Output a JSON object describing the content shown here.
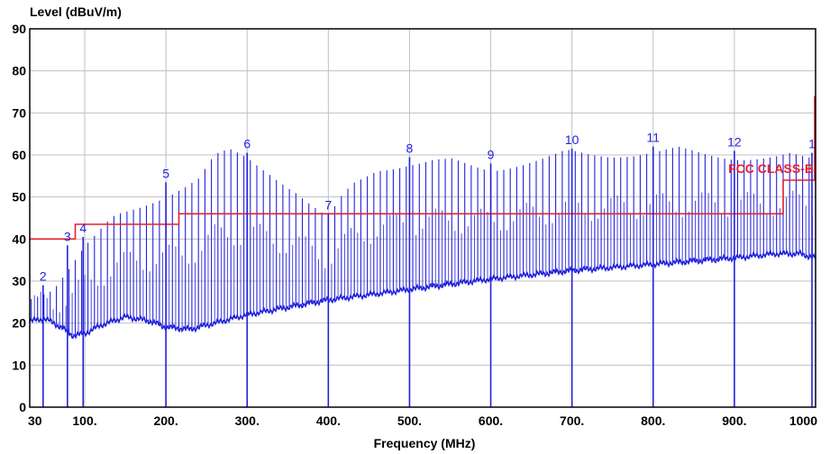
{
  "chart_data": {
    "type": "line",
    "title": "",
    "ylabel": "Level (dBuV/m)",
    "xlabel": "Frequency (MHz)",
    "xlim": [
      30,
      1000
    ],
    "ylim": [
      0,
      90
    ],
    "grid": true,
    "x_ticks": [
      30,
      100,
      200,
      300,
      400,
      500,
      600,
      700,
      800,
      900,
      1000
    ],
    "x_tick_labels": [
      "30",
      "100.",
      "200.",
      "300.",
      "400.",
      "500.",
      "600.",
      "700.",
      "800.",
      "900.",
      "1000"
    ],
    "y_ticks": [
      0,
      10,
      20,
      30,
      40,
      50,
      60,
      70,
      80,
      90
    ],
    "y_tick_labels": [
      "0",
      "10",
      "20",
      "30",
      "40",
      "50",
      "60",
      "70",
      "80",
      "90"
    ],
    "colors": {
      "trace": "#2222dd",
      "limit": "#e8202a",
      "grid": "#c0c0c0"
    },
    "limit_line": {
      "label": "FCC CLASS-B",
      "segments": [
        {
          "x": [
            30,
            88
          ],
          "y": 40
        },
        {
          "x": [
            88,
            216
          ],
          "y": 43.5
        },
        {
          "x": [
            216,
            960
          ],
          "y": 46
        },
        {
          "x": [
            960,
            1000
          ],
          "y": 54
        }
      ]
    },
    "markers": [
      {
        "label": "1",
        "x": 1000,
        "y": 60.5
      },
      {
        "label": "2",
        "x": 47,
        "y": 29
      },
      {
        "label": "3",
        "x": 78,
        "y": 38.5
      },
      {
        "label": "4",
        "x": 98,
        "y": 40.5
      },
      {
        "label": "5",
        "x": 200,
        "y": 53.5
      },
      {
        "label": "6",
        "x": 300,
        "y": 60.5
      },
      {
        "label": "7",
        "x": 400,
        "y": 46
      },
      {
        "label": "8",
        "x": 500,
        "y": 59.5
      },
      {
        "label": "9",
        "x": 600,
        "y": 58
      },
      {
        "label": "10",
        "x": 700,
        "y": 61.5
      },
      {
        "label": "11",
        "x": 800,
        "y": 62
      },
      {
        "label": "12",
        "x": 900,
        "y": 61
      }
    ],
    "series": [
      {
        "name": "",
        "envelope_x": [
          30,
          60,
          80,
          100,
          130,
          160,
          200,
          240,
          260,
          280,
          300,
          330,
          360,
          400,
          430,
          460,
          500,
          530,
          560,
          600,
          650,
          700,
          750,
          800,
          850,
          900,
          950,
          1000
        ],
        "envelope_y": [
          27,
          30,
          35,
          40,
          45,
          48,
          52,
          56,
          61,
          61.5,
          60.5,
          57,
          53,
          46,
          54,
          58,
          59.5,
          60,
          59,
          58,
          60,
          61.5,
          61.5,
          62,
          62,
          61,
          60.5,
          60.5
        ],
        "floor_x": [
          30,
          50,
          70,
          85,
          100,
          120,
          150,
          180,
          200,
          230,
          300,
          400,
          500,
          600,
          700,
          800,
          900,
          950,
          980,
          1000
        ],
        "floor_y": [
          20.5,
          21,
          19,
          17,
          17.5,
          19.5,
          21.5,
          20.5,
          19,
          18.5,
          22,
          25.5,
          28,
          30.5,
          32.5,
          34,
          35.5,
          36.5,
          36.5,
          35.5
        ]
      }
    ]
  }
}
